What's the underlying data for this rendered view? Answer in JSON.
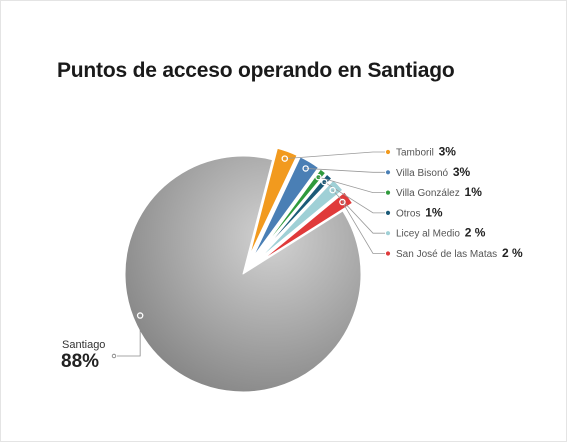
{
  "chart_data": {
    "type": "pie",
    "title": "Puntos de acceso operando en Santiago",
    "slices": [
      {
        "label": "Santiago",
        "value": 88,
        "value_text": "88%",
        "color": "#9a9a9a"
      },
      {
        "label": "Tamboril",
        "value": 3,
        "value_text": "3%",
        "color": "#f29a1e"
      },
      {
        "label": "Villa Bisonó",
        "value": 3,
        "value_text": "3%",
        "color": "#4a7fb5"
      },
      {
        "label": "Villa González",
        "value": 1,
        "value_text": "1%",
        "color": "#2f9a3c"
      },
      {
        "label": "Otros",
        "value": 1,
        "value_text": "1%",
        "color": "#1b5a78"
      },
      {
        "label": "Licey al Medio",
        "value": 2,
        "value_text": "2 %",
        "color": "#9fd0d6"
      },
      {
        "label": "San José de las Matas",
        "value": 2,
        "value_text": "2 %",
        "color": "#e03a3a"
      }
    ]
  }
}
